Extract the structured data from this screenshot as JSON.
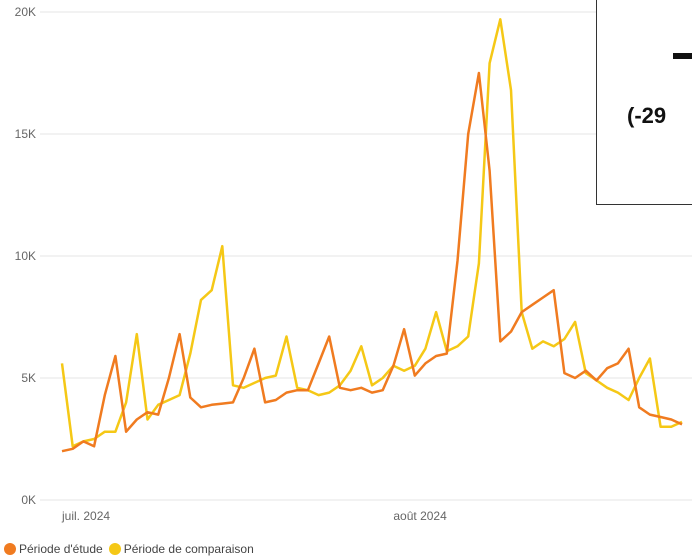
{
  "chart_data": {
    "type": "line",
    "title": "",
    "xlabel": "",
    "ylabel": "",
    "ylim": [
      0,
      20000
    ],
    "y_ticks": [
      {
        "value": 0,
        "label": "0K"
      },
      {
        "value": 5000,
        "label": "5K"
      },
      {
        "value": 10000,
        "label": "10K"
      },
      {
        "value": 15000,
        "label": "15K"
      },
      {
        "value": 20000,
        "label": "20K"
      }
    ],
    "x_ticks": [
      {
        "index": 0,
        "label": "juil. 2024"
      },
      {
        "index": 31,
        "label": "août 2024"
      }
    ],
    "grid": true,
    "legend_position": "bottom-left",
    "series": [
      {
        "name": "Période d'étude",
        "color": "#F07B20",
        "values": [
          2000,
          2100,
          2400,
          2200,
          4300,
          5900,
          2800,
          3300,
          3600,
          3500,
          5000,
          6800,
          4200,
          3800,
          3900,
          3950,
          4000,
          5000,
          6200,
          4000,
          4100,
          4400,
          4500,
          4500,
          5600,
          6700,
          4600,
          4500,
          4600,
          4400,
          4500,
          5500,
          7000,
          5100,
          5600,
          5900,
          6000,
          9800,
          15000,
          17500,
          13500,
          6500,
          6900,
          7700,
          8000,
          8300,
          8600,
          5200,
          5000,
          5300,
          4900,
          5400,
          5600,
          6200,
          3800,
          3500,
          3400,
          3300,
          3100
        ]
      },
      {
        "name": "Période de comparaison",
        "color": "#F5C816",
        "values": [
          5600,
          2200,
          2400,
          2500,
          2800,
          2800,
          4000,
          6800,
          3300,
          3900,
          4100,
          4300,
          6000,
          8200,
          8600,
          10400,
          4700,
          4600,
          4800,
          5000,
          5100,
          6700,
          4600,
          4500,
          4300,
          4400,
          4700,
          5300,
          6300,
          4700,
          5000,
          5500,
          5300,
          5500,
          6200,
          7700,
          6100,
          6300,
          6700,
          9700,
          17900,
          19700,
          16800,
          7700,
          6200,
          6500,
          6300,
          6600,
          7300,
          5200,
          4900,
          4600,
          4400,
          4100,
          5000,
          5800,
          3000,
          3000,
          3200
        ]
      }
    ]
  },
  "overlay": {
    "value_text": "(-29"
  }
}
